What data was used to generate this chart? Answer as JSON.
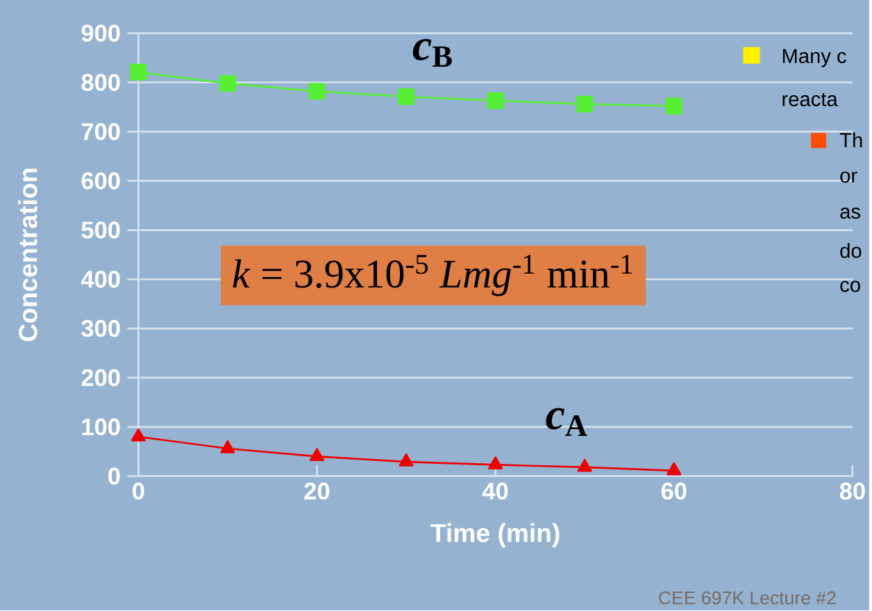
{
  "chart_data": {
    "type": "line",
    "xlabel": "Time (min)",
    "ylabel": "Concentration",
    "x": [
      0,
      10,
      20,
      30,
      40,
      50,
      60
    ],
    "series": [
      {
        "name": "*c*$_{B}$",
        "color": "#55ee33",
        "marker": "square",
        "values": [
          821,
          798,
          782,
          771,
          763,
          756,
          752
        ]
      },
      {
        "name": "*c*$_{A}$",
        "color": "#ee0000",
        "marker": "triangle",
        "values": [
          80,
          56,
          40,
          29,
          23,
          18,
          11
        ]
      }
    ],
    "xlim": [
      0,
      80
    ],
    "xticks": [
      0,
      20,
      40,
      60,
      80
    ],
    "ylim": [
      0,
      900
    ],
    "yticks": [
      0,
      100,
      200,
      300,
      400,
      500,
      600,
      700,
      800,
      900
    ],
    "grid": "y",
    "annotations": [
      "*k* = 3.9x10$^{-5}$ *Lmg*$^{-1}$ min$^{-1}$",
      "Many c",
      "reacta",
      "Th",
      "or",
      "as",
      "do",
      "co",
      "CEE 697K Lecture #2"
    ]
  }
}
